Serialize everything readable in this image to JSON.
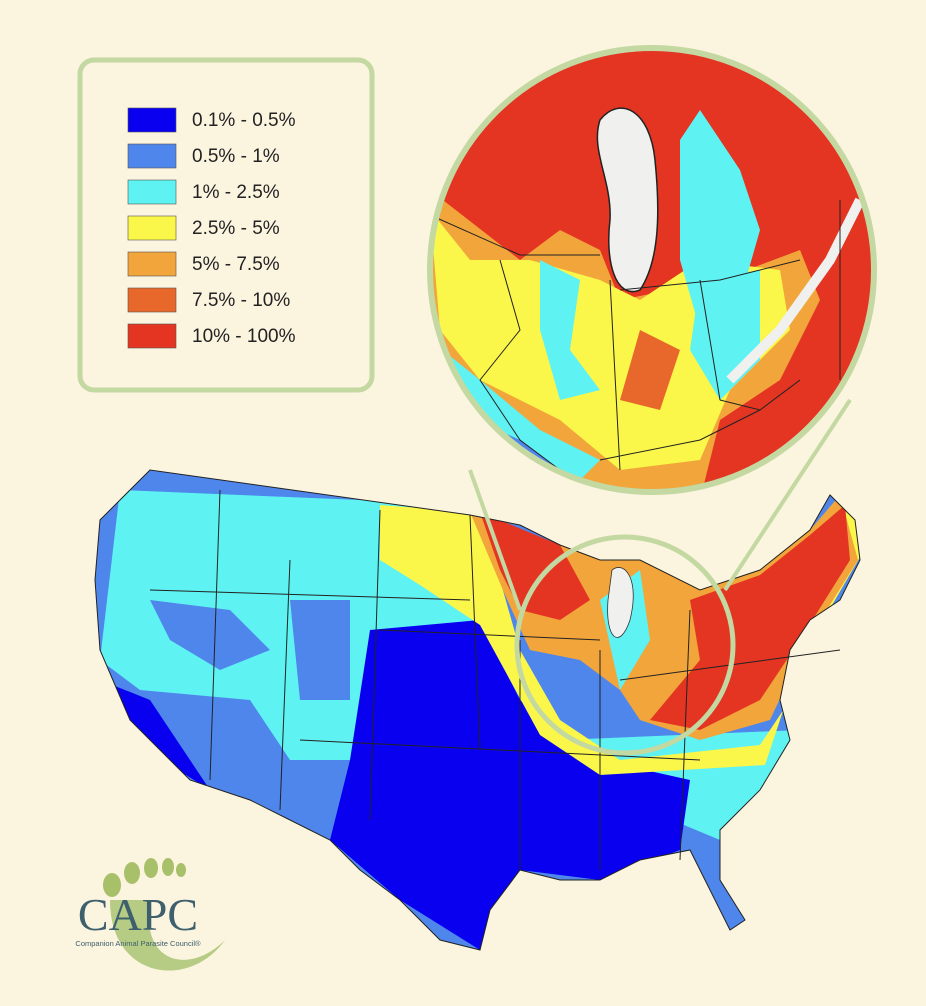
{
  "legend": {
    "items": [
      {
        "label": "0.1% - 0.5%",
        "color": "#0a00f0"
      },
      {
        "label": "0.5% - 1%",
        "color": "#4f86ec"
      },
      {
        "label": "1% - 2.5%",
        "color": "#5ff2f2"
      },
      {
        "label": "2.5% - 5%",
        "color": "#fbf64a"
      },
      {
        "label": "5% - 7.5%",
        "color": "#f1a53a"
      },
      {
        "label": "7.5% - 10%",
        "color": "#e8672a"
      },
      {
        "label": "10% - 100%",
        "color": "#e33522"
      }
    ]
  },
  "logo": {
    "name": "CAPC",
    "subtitle": "Companion Animal Parasite Council®"
  }
}
